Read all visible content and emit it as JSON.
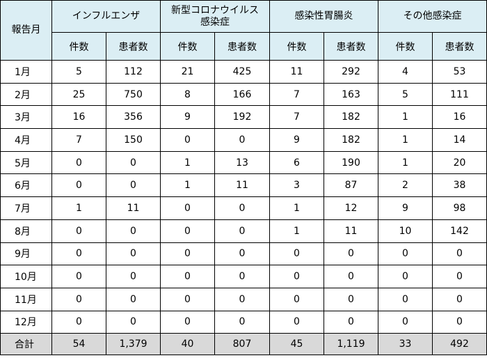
{
  "table": {
    "corner": "報告月",
    "groups": [
      "インフルエンザ",
      "新型コロナウイルス\n感染症",
      "感染性胃腸炎",
      "その他感染症"
    ],
    "subheaders": [
      "件数",
      "患者数"
    ],
    "rows": [
      [
        "1月",
        "5",
        "112",
        "21",
        "425",
        "11",
        "292",
        "4",
        "53"
      ],
      [
        "2月",
        "25",
        "750",
        "8",
        "166",
        "7",
        "163",
        "5",
        "111"
      ],
      [
        "3月",
        "16",
        "356",
        "9",
        "192",
        "7",
        "182",
        "1",
        "16"
      ],
      [
        "4月",
        "7",
        "150",
        "0",
        "0",
        "9",
        "182",
        "1",
        "14"
      ],
      [
        "5月",
        "0",
        "0",
        "1",
        "13",
        "6",
        "190",
        "1",
        "20"
      ],
      [
        "6月",
        "0",
        "0",
        "1",
        "11",
        "3",
        "87",
        "2",
        "38"
      ],
      [
        "7月",
        "1",
        "11",
        "0",
        "0",
        "1",
        "12",
        "9",
        "98"
      ],
      [
        "8月",
        "0",
        "0",
        "0",
        "0",
        "1",
        "11",
        "10",
        "142"
      ],
      [
        "9月",
        "0",
        "0",
        "0",
        "0",
        "0",
        "0",
        "0",
        "0"
      ],
      [
        "10月",
        "0",
        "0",
        "0",
        "0",
        "0",
        "0",
        "0",
        "0"
      ],
      [
        "11月",
        "0",
        "0",
        "0",
        "0",
        "0",
        "0",
        "0",
        "0"
      ],
      [
        "12月",
        "0",
        "0",
        "0",
        "0",
        "0",
        "0",
        "0",
        "0"
      ]
    ],
    "total": [
      "合計",
      "54",
      "1,379",
      "40",
      "807",
      "45",
      "1,119",
      "33",
      "492"
    ]
  }
}
